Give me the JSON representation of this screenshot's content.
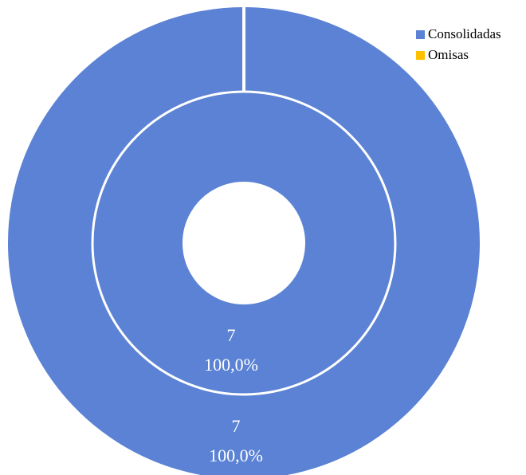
{
  "chart_data": {
    "type": "donut",
    "rings": [
      {
        "name": "",
        "slices": [
          {
            "label": "Consolidadas",
            "value": 7,
            "percent": "100,0%",
            "value_text": "7"
          },
          {
            "label": "Omisas",
            "value": 0,
            "percent": "0,0%",
            "value_text": ""
          }
        ]
      },
      {
        "name": "",
        "slices": [
          {
            "label": "Consolidadas",
            "value": 7,
            "percent": "100,0%",
            "value_text": "7"
          },
          {
            "label": "Omisas",
            "value": 0,
            "percent": "0,0%",
            "value_text": ""
          }
        ]
      }
    ],
    "legend": {
      "position": "top-right",
      "items": [
        {
          "label": "Consolidadas",
          "color": "#5B82D4"
        },
        {
          "label": "Omisas",
          "color": "#FFC000"
        }
      ]
    },
    "title": ""
  }
}
